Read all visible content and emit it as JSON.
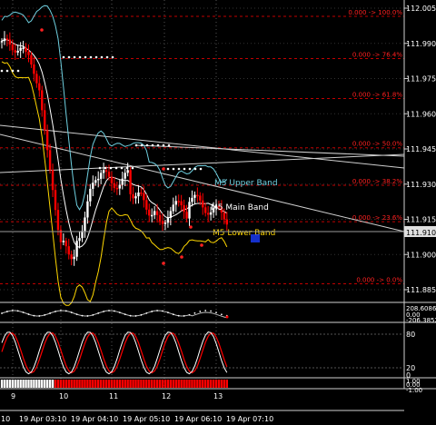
{
  "chart_data": {
    "type": "line",
    "instrument_note": "",
    "price_axis": {
      "labels": [
        "112.005",
        "111.990",
        "111.975",
        "111.960",
        "111.945",
        "111.930",
        "111.915",
        "111.900",
        "111.885"
      ],
      "current_price": "111.910",
      "ylim": [
        111.88,
        112.01
      ]
    },
    "fib_levels": [
      {
        "label": "0.000 -> 100.0%",
        "price": 112.0015
      },
      {
        "label": "0.000 -> 76.4%",
        "price": 111.9835
      },
      {
        "label": "0.000 -> 61.8%",
        "price": 111.9665
      },
      {
        "label": "0.000 -> 50.0%",
        "price": 111.9455
      },
      {
        "label": "0.000 -> 38.2%",
        "price": 111.9295
      },
      {
        "label": "0.000 -> 23.6%",
        "price": 111.914
      },
      {
        "label": "0.000 -> 0.0%",
        "price": 111.8875
      }
    ],
    "band_labels": {
      "upper": "M5 Upper Band",
      "main": "M5 Main Band",
      "lower": "M5 Lower Band"
    },
    "panel1": {
      "labels": [
        "208.6086",
        "0.00",
        "-206.3852"
      ]
    },
    "panel2": {
      "labels": [
        "80",
        "20",
        "0"
      ]
    },
    "panel3": {
      "labels": [
        "1.00",
        "0.00",
        "-1.00"
      ]
    },
    "day_ticks": [
      "9",
      "10",
      "11",
      "12",
      "13"
    ],
    "time_ticks": [
      "19 Apr 03:10",
      "19 Apr 04:10",
      "19 Apr 05:10",
      "19 Apr 06:10",
      "19 Apr 07:10"
    ],
    "left_edge_label": "10",
    "colors": {
      "background": "#000000",
      "bull": "#ffffff",
      "bear": "#ff0000",
      "upper_band": "#6fd0e0",
      "main_band": "#ffffff",
      "lower_band": "#ffd700",
      "fib": "#ff0000",
      "grid": "#555555",
      "stoch_main": "#ffffff",
      "stoch_signal": "#ff0000"
    }
  }
}
